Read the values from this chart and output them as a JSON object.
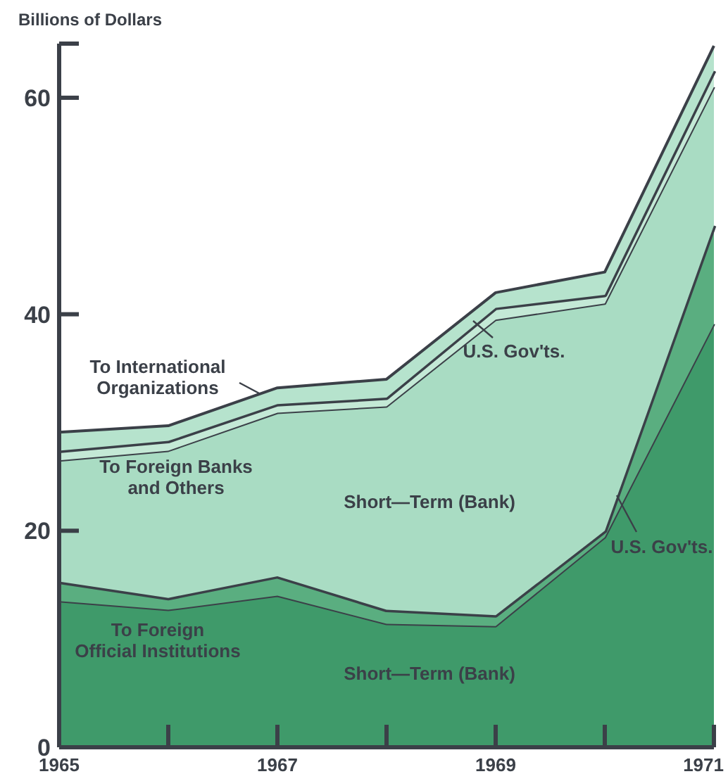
{
  "chart_data": {
    "type": "area",
    "stacked": true,
    "ylabel": "Billions of Dollars",
    "x": [
      1965,
      1966,
      1967,
      1968,
      1969,
      1970,
      1971
    ],
    "xlim": [
      1965,
      1971
    ],
    "xticks": [
      1965,
      {
        "value": 1966,
        "label": null
      },
      1967,
      {
        "value": 1968,
        "label": null
      },
      1969,
      {
        "value": 1970,
        "label": null
      },
      1971
    ],
    "ylim": [
      0,
      65
    ],
    "yticks": [
      0,
      20,
      40,
      60
    ],
    "grid": false,
    "series": [
      {
        "name": "Short—Term (Bank)",
        "color": "#3f9a6a",
        "values": [
          13.5,
          12.7,
          14.0,
          11.4,
          11.2,
          19.4,
          39.1
        ]
      },
      {
        "name": "U.S. Gov'ts.",
        "color": "#5aae80",
        "values": [
          1.8,
          1.1,
          1.8,
          1.3,
          1.0,
          0.6,
          9.1
        ]
      },
      {
        "name": "Short—Term (Bank)",
        "color": "#a9dcc3",
        "values": [
          11.2,
          13.6,
          15.1,
          18.8,
          27.3,
          21.0,
          12.8
        ]
      },
      {
        "name": "U.S. Gov'ts.",
        "color": "#c4e9d6",
        "values": [
          0.9,
          0.9,
          0.8,
          0.8,
          1.1,
          0.8,
          1.5
        ]
      },
      {
        "name": "To International Organizations",
        "color": "#b6e3cd",
        "values": [
          1.7,
          1.4,
          1.5,
          1.7,
          1.4,
          2.1,
          2.3
        ]
      }
    ],
    "annotations": [
      "To Foreign Official Institutions",
      "To Foreign Banks and Others"
    ]
  }
}
